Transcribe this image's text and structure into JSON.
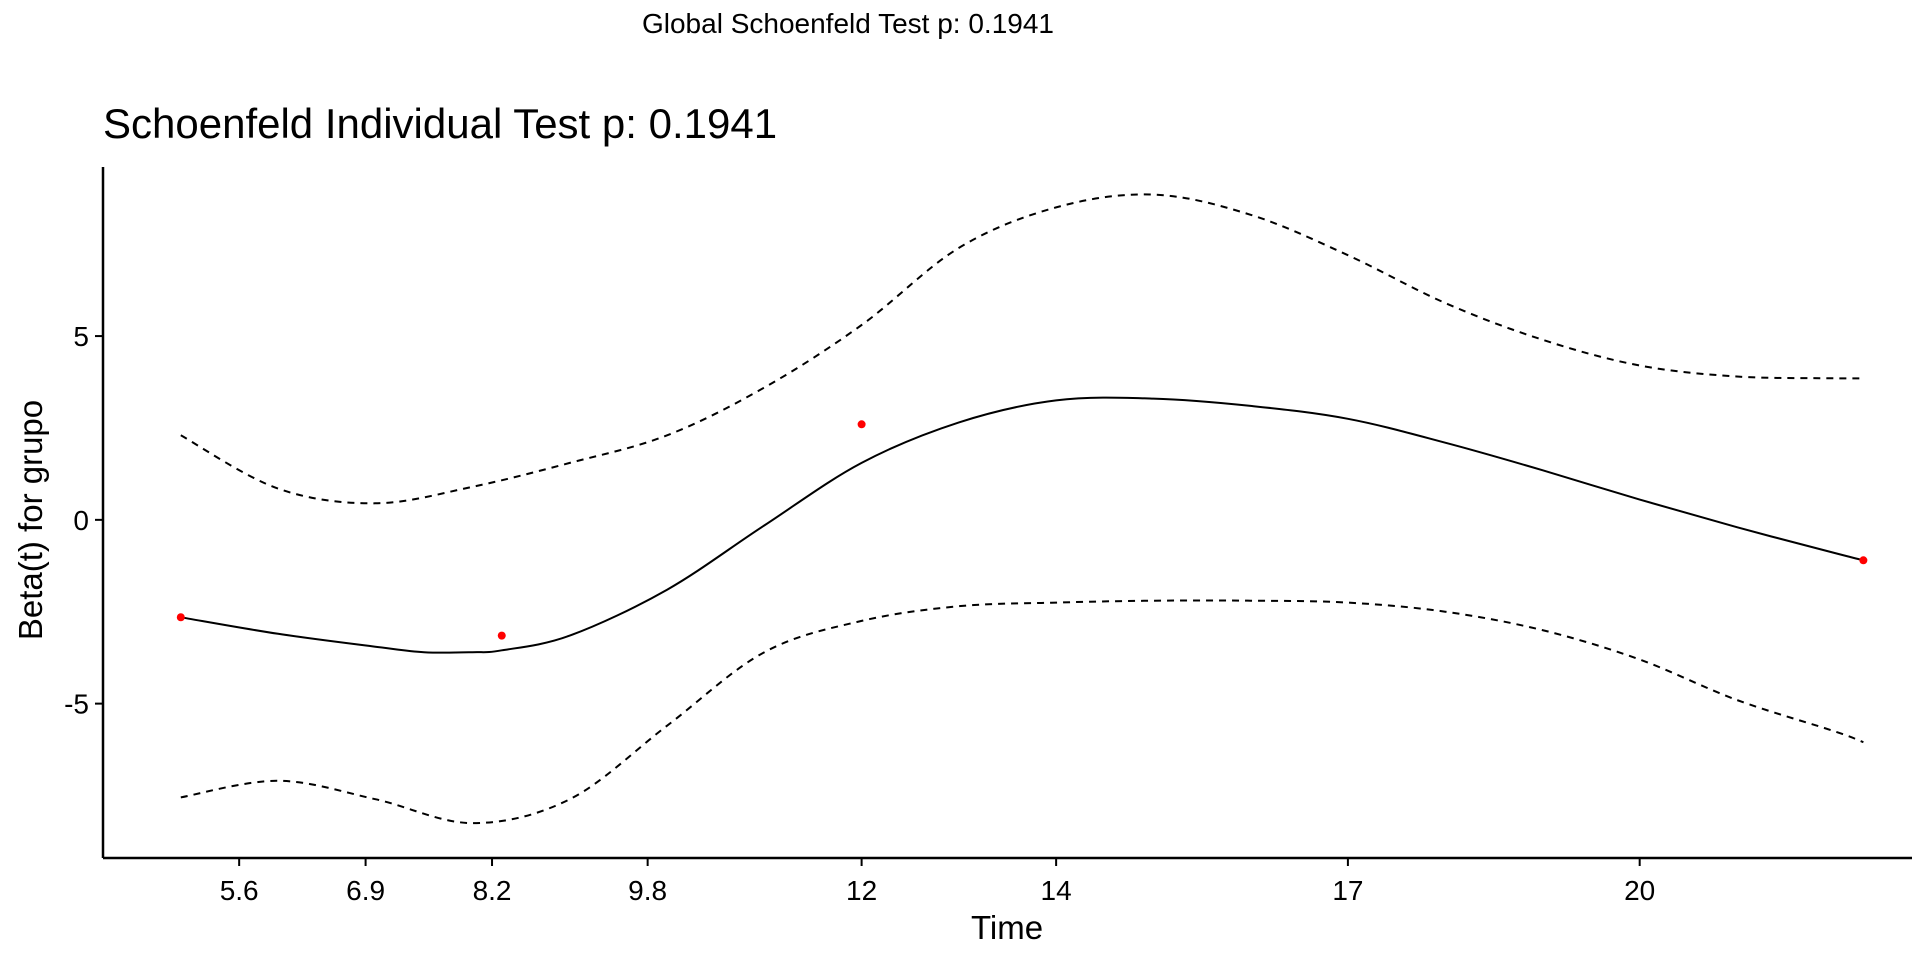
{
  "chart_data": {
    "type": "line",
    "suptitle": "Global Schoenfeld Test p: 0.1941",
    "title": "Schoenfeld Individual Test p: 0.1941",
    "xlabel": "Time",
    "ylabel": "Beta(t) for grupo",
    "xlim": [
      4.2,
      22.8
    ],
    "ylim": [
      -9.2,
      9.6
    ],
    "x_tick_labels": [
      "5.6",
      "6.9",
      "8.2",
      "9.8",
      "12",
      "14",
      "17",
      "20"
    ],
    "y_tick_labels": [
      "5",
      "0",
      "-5"
    ],
    "y_ticks": [
      5,
      0,
      -5
    ],
    "grid": false,
    "series": [
      {
        "role": "fit",
        "line_style": "solid",
        "color": "#000000",
        "x": [
          5,
          6,
          7,
          7.5,
          8,
          8.3,
          9,
          10,
          11,
          12,
          13,
          14,
          15,
          16,
          17,
          18,
          19,
          20,
          21,
          22,
          22.3
        ],
        "y": [
          -2.65,
          -3.1,
          -3.45,
          -3.6,
          -3.6,
          -3.55,
          -3.15,
          -1.9,
          -0.15,
          1.55,
          2.65,
          3.25,
          3.3,
          3.1,
          2.75,
          2.1,
          1.35,
          0.55,
          -0.2,
          -0.9,
          -1.1
        ]
      },
      {
        "role": "upper-ci",
        "line_style": "dashed",
        "color": "#000000",
        "x": [
          5,
          6,
          7,
          8,
          9,
          10,
          11,
          12,
          13,
          14,
          15,
          16,
          17,
          18,
          19,
          20,
          21,
          22,
          22.3
        ],
        "y": [
          2.3,
          0.85,
          0.45,
          0.9,
          1.55,
          2.3,
          3.6,
          5.3,
          7.4,
          8.5,
          8.85,
          8.3,
          7.2,
          5.9,
          4.9,
          4.2,
          3.9,
          3.85,
          3.85
        ]
      },
      {
        "role": "lower-ci",
        "line_style": "dashed",
        "color": "#000000",
        "x": [
          5,
          6,
          7,
          8,
          9,
          10,
          11,
          12,
          13,
          14,
          15,
          16,
          17,
          18,
          19,
          20,
          21,
          22,
          22.3
        ],
        "y": [
          -7.55,
          -7.1,
          -7.6,
          -8.25,
          -7.6,
          -5.6,
          -3.6,
          -2.75,
          -2.35,
          -2.25,
          -2.2,
          -2.2,
          -2.25,
          -2.5,
          -3.0,
          -3.8,
          -4.9,
          -5.75,
          -6.05
        ]
      }
    ],
    "points": {
      "color": "#ff0000",
      "x": [
        5,
        8.3,
        12,
        22.3
      ],
      "y": [
        -2.65,
        -3.15,
        2.6,
        -1.1
      ]
    }
  }
}
